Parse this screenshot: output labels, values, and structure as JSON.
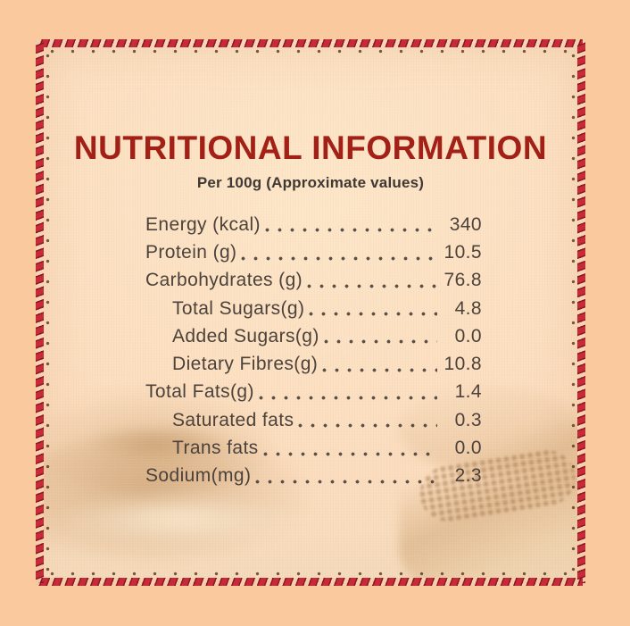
{
  "label": {
    "title": "NUTRITIONAL INFORMATION",
    "subtitle": "Per 100g (Approximate values)",
    "rows": [
      {
        "label": "Energy (kcal)",
        "value": "340",
        "indent": false
      },
      {
        "label": "Protein (g)",
        "value": "10.5",
        "indent": false
      },
      {
        "label": "Carbohydrates (g)",
        "value": "76.8",
        "indent": false
      },
      {
        "label": "Total Sugars(g)",
        "value": "4.8",
        "indent": true
      },
      {
        "label": "Added Sugars(g)",
        "value": "0.0",
        "indent": true
      },
      {
        "label": "Dietary Fibres(g)",
        "value": "10.8",
        "indent": true
      },
      {
        "label": "Total Fats(g)",
        "value": "1.4",
        "indent": false
      },
      {
        "label": "Saturated fats",
        "value": "0.3",
        "indent": true
      },
      {
        "label": "Trans fats",
        "value": "0.0",
        "indent": true
      },
      {
        "label": "Sodium(mg)",
        "value": "2.3",
        "indent": false
      }
    ]
  },
  "colors": {
    "outer_background": "#fbc99e",
    "panel_mid": "#fbdcbd",
    "title_red": "#a32017",
    "stitch_red": "#c62b3a",
    "stitch_dark": "#8e1722",
    "knot_brown": "#4e2a12",
    "ink": "#4c423b"
  }
}
